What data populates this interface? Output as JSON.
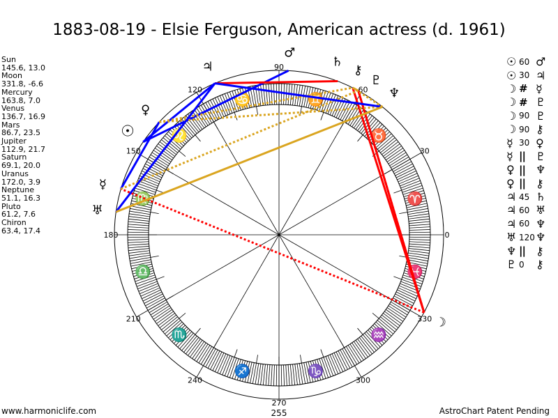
{
  "title": "1883-08-19 - Elsie Ferguson, American actress (d. 1961)",
  "planets": [
    {
      "name": "Sun",
      "value": "145.6, 13.0",
      "longitude": 145.6,
      "glyph": "☉"
    },
    {
      "name": "Moon",
      "value": "331.8, -6.6",
      "longitude": 331.8,
      "glyph": "☽"
    },
    {
      "name": "Mercury",
      "value": "163.8, 7.0",
      "longitude": 163.8,
      "glyph": "☿"
    },
    {
      "name": "Venus",
      "value": "136.7, 16.9",
      "longitude": 136.7,
      "glyph": "♀"
    },
    {
      "name": "Mars",
      "value": "86.7, 23.5",
      "longitude": 86.7,
      "glyph": "♂"
    },
    {
      "name": "Jupiter",
      "value": "112.9, 21.7",
      "longitude": 112.9,
      "glyph": "♃"
    },
    {
      "name": "Saturn",
      "value": "69.1, 20.0",
      "longitude": 69.1,
      "glyph": "♄"
    },
    {
      "name": "Uranus",
      "value": "172.0, 3.9",
      "longitude": 172.0,
      "glyph": "♅"
    },
    {
      "name": "Neptune",
      "value": "51.1, 16.3",
      "longitude": 51.1,
      "glyph": "♆"
    },
    {
      "name": "Pluto",
      "value": "61.2, 7.6",
      "longitude": 61.2,
      "glyph": "♇"
    },
    {
      "name": "Chiron",
      "value": "63.4, 17.4",
      "longitude": 63.4,
      "glyph": "⚷"
    }
  ],
  "aspects": [
    {
      "p1": "Sun",
      "g1": "☉",
      "label": "60",
      "p2": "Mars",
      "g2": "♂",
      "color": "#0000ff",
      "dotted": false
    },
    {
      "p1": "Sun",
      "g1": "☉",
      "label": "30",
      "p2": "Jupiter",
      "g2": "♃",
      "color": "#0000ff",
      "dotted": false
    },
    {
      "p1": "Moon",
      "g1": "☽",
      "label": "#",
      "p2": "Mercury",
      "g2": "☿",
      "color": "#ff0000",
      "dotted": true
    },
    {
      "p1": "Moon",
      "g1": "☽",
      "label": "#",
      "p2": "Pluto",
      "g2": "♇",
      "color": "#ff0000",
      "dotted": true
    },
    {
      "p1": "Moon",
      "g1": "☽",
      "label": "90",
      "p2": "Pluto",
      "g2": "♇",
      "color": "#ff0000",
      "dotted": false
    },
    {
      "p1": "Moon",
      "g1": "☽",
      "label": "90",
      "p2": "Chiron",
      "g2": "⚷",
      "color": "#ff0000",
      "dotted": false
    },
    {
      "p1": "Mercury",
      "g1": "☿",
      "label": "30",
      "p2": "Venus",
      "g2": "♀",
      "color": "#0000ff",
      "dotted": false
    },
    {
      "p1": "Mercury",
      "g1": "☿",
      "label": "||",
      "p2": "Pluto",
      "g2": "♇",
      "color": "#daa520",
      "dotted": true
    },
    {
      "p1": "Venus",
      "g1": "♀",
      "label": "||",
      "p2": "Neptune",
      "g2": "♆",
      "color": "#daa520",
      "dotted": true
    },
    {
      "p1": "Venus",
      "g1": "♀",
      "label": "||",
      "p2": "Chiron",
      "g2": "⚷",
      "color": "#daa520",
      "dotted": true
    },
    {
      "p1": "Jupiter",
      "g1": "♃",
      "label": "45",
      "p2": "Saturn",
      "g2": "♄",
      "color": "#ff0000",
      "dotted": false
    },
    {
      "p1": "Jupiter",
      "g1": "♃",
      "label": "60",
      "p2": "Uranus",
      "g2": "♅",
      "color": "#0000ff",
      "dotted": false
    },
    {
      "p1": "Jupiter",
      "g1": "♃",
      "label": "60",
      "p2": "Neptune",
      "g2": "♆",
      "color": "#0000ff",
      "dotted": false
    },
    {
      "p1": "Uranus",
      "g1": "♅",
      "label": "120",
      "p2": "Neptune",
      "g2": "♆",
      "color": "#daa520",
      "dotted": false
    },
    {
      "p1": "Neptune",
      "g1": "♆",
      "label": "||",
      "p2": "Chiron",
      "g2": "⚷",
      "color": "#daa520",
      "dotted": true
    },
    {
      "p1": "Pluto",
      "g1": "♇",
      "label": "0",
      "p2": "Chiron",
      "g2": "⚷",
      "color": "#daa520",
      "dotted": false
    }
  ],
  "signs": [
    "♈",
    "♉",
    "♊",
    "♋",
    "♌",
    "♍",
    "♎",
    "♏",
    "♐",
    "♑",
    "♒",
    "♓"
  ],
  "degree_labels": [
    "0",
    "30",
    "60",
    "90",
    "120",
    "150",
    "180",
    "210",
    "240",
    "270",
    "300",
    "330"
  ],
  "bottom_value": "255",
  "footer": {
    "left": "www.harmoniclife.com",
    "right": "AstroChart Patent Pending"
  }
}
